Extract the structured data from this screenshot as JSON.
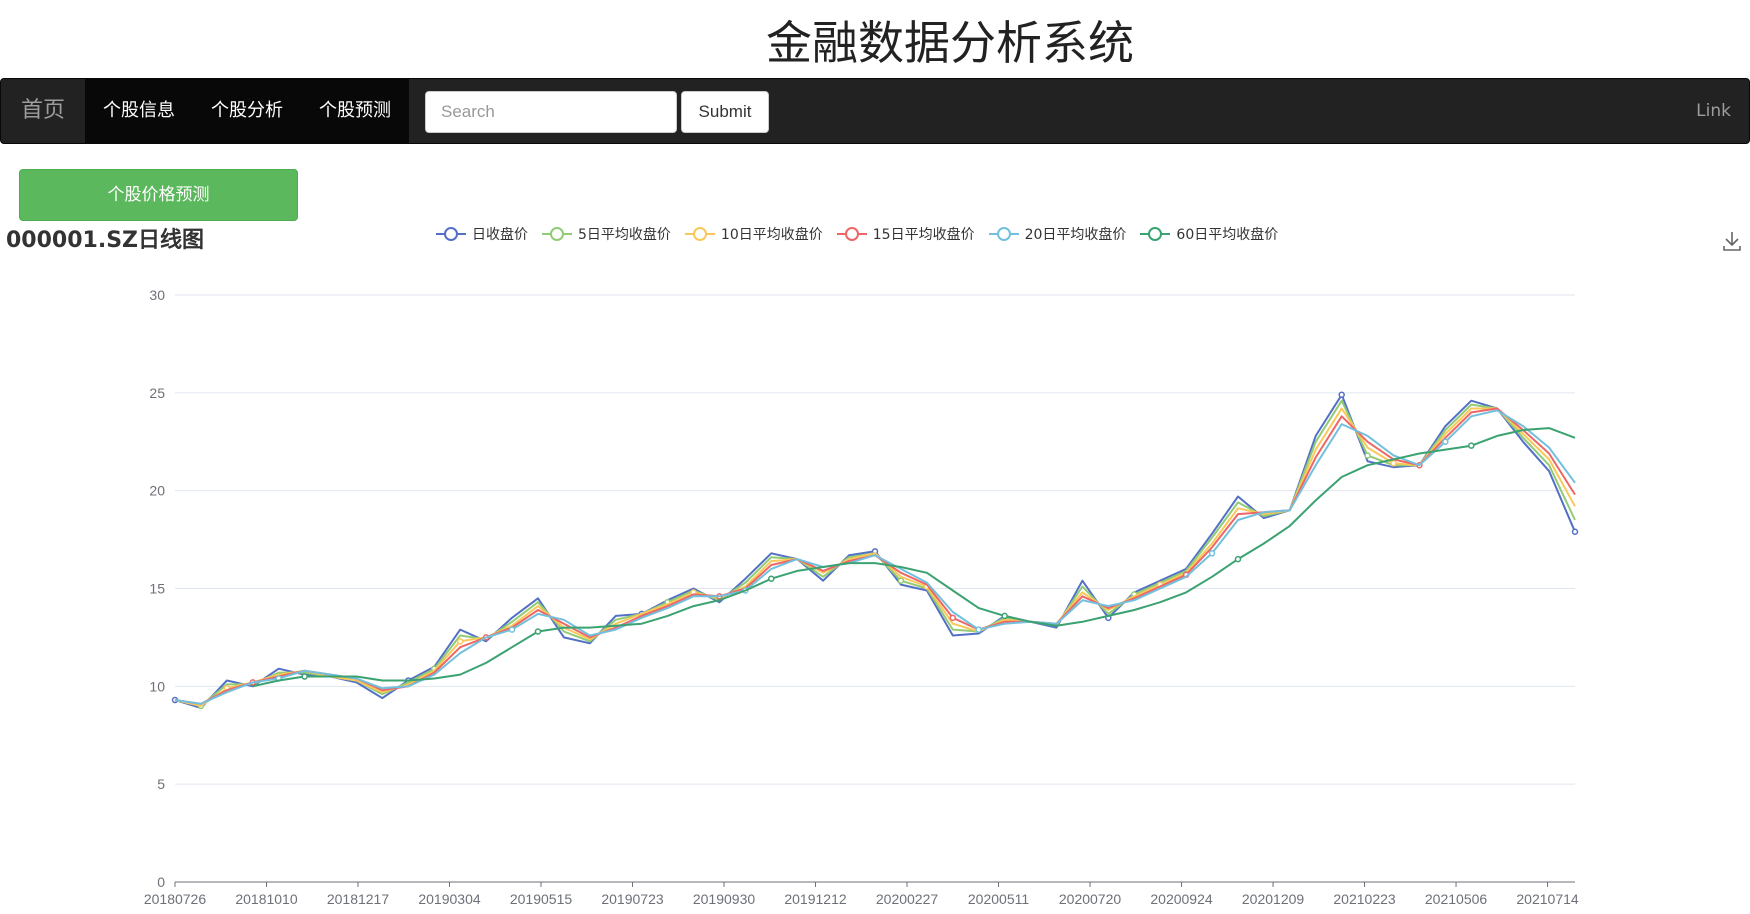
{
  "header": {
    "title": "金融数据分析系统"
  },
  "navbar": {
    "brand": "首页",
    "items": [
      "个股信息",
      "个股分析",
      "个股预测"
    ],
    "search": {
      "placeholder": "Search",
      "value": ""
    },
    "submit_label": "Submit",
    "link_label": "Link",
    "bg_color": "#222222"
  },
  "actions": {
    "predict_label": "个股价格预测",
    "predict_color": "#5cb85c"
  },
  "toolbox": {
    "download_icon": "download-icon"
  },
  "chart_data": {
    "type": "line",
    "title": "000001.SZ日线图",
    "ylim": [
      0,
      30
    ],
    "yticks": [
      0,
      5,
      10,
      15,
      20,
      25,
      30
    ],
    "xticks": [
      "20180726",
      "20181010",
      "20181217",
      "20190304",
      "20190515",
      "20190723",
      "20190930",
      "20191212",
      "20200227",
      "20200511",
      "20200720",
      "20200924",
      "20201209",
      "20210223",
      "20210506",
      "20210714"
    ],
    "legend_position": "top",
    "grid": true,
    "series": [
      {
        "name": "日收盘价",
        "color": "#5470c6",
        "values": [
          9.3,
          8.9,
          10.3,
          10.0,
          10.9,
          10.6,
          10.5,
          10.2,
          9.4,
          10.3,
          11.0,
          12.9,
          12.3,
          13.5,
          14.5,
          12.5,
          12.2,
          13.6,
          13.7,
          14.4,
          15.0,
          14.3,
          15.5,
          16.8,
          16.5,
          15.4,
          16.7,
          16.9,
          15.2,
          14.9,
          12.6,
          12.7,
          13.6,
          13.3,
          13.0,
          15.4,
          13.5,
          14.8,
          15.4,
          16.0,
          17.8,
          19.7,
          18.6,
          19.0,
          22.8,
          24.9,
          21.5,
          21.2,
          21.3,
          23.3,
          24.6,
          24.2,
          22.5,
          21.0,
          17.9
        ]
      },
      {
        "name": "5日平均收盘价",
        "color": "#91cc75",
        "values": [
          9.3,
          9.0,
          10.1,
          10.1,
          10.7,
          10.7,
          10.5,
          10.3,
          9.6,
          10.2,
          10.9,
          12.6,
          12.4,
          13.3,
          14.3,
          12.8,
          12.3,
          13.4,
          13.7,
          14.3,
          14.9,
          14.4,
          15.3,
          16.6,
          16.5,
          15.6,
          16.6,
          16.8,
          15.4,
          15.0,
          12.9,
          12.8,
          13.5,
          13.3,
          13.1,
          15.1,
          13.7,
          14.7,
          15.3,
          15.9,
          17.6,
          19.4,
          18.7,
          19.0,
          22.5,
          24.6,
          21.8,
          21.3,
          21.3,
          23.1,
          24.4,
          24.2,
          22.7,
          21.3,
          18.5
        ]
      },
      {
        "name": "10日平均收盘价",
        "color": "#fac858",
        "values": [
          9.3,
          9.0,
          9.9,
          10.2,
          10.6,
          10.8,
          10.5,
          10.3,
          9.7,
          10.1,
          10.8,
          12.3,
          12.5,
          13.1,
          14.1,
          13.0,
          12.4,
          13.2,
          13.7,
          14.2,
          14.8,
          14.5,
          15.1,
          16.4,
          16.5,
          15.8,
          16.5,
          16.8,
          15.6,
          15.1,
          13.2,
          12.8,
          13.4,
          13.3,
          13.2,
          14.8,
          13.9,
          14.6,
          15.2,
          15.8,
          17.3,
          19.1,
          18.8,
          19.0,
          22.1,
          24.2,
          22.2,
          21.4,
          21.3,
          22.9,
          24.2,
          24.2,
          22.9,
          21.6,
          19.2
        ]
      },
      {
        "name": "15日平均收盘价",
        "color": "#ee6666",
        "values": [
          9.3,
          9.1,
          9.8,
          10.2,
          10.5,
          10.8,
          10.6,
          10.4,
          9.8,
          10.0,
          10.7,
          12.0,
          12.5,
          13.0,
          13.9,
          13.2,
          12.5,
          13.0,
          13.6,
          14.1,
          14.7,
          14.6,
          15.0,
          16.2,
          16.5,
          15.9,
          16.4,
          16.7,
          15.8,
          15.2,
          13.5,
          12.9,
          13.3,
          13.3,
          13.2,
          14.6,
          14.0,
          14.5,
          15.1,
          15.7,
          17.1,
          18.8,
          18.9,
          19.0,
          21.7,
          23.8,
          22.5,
          21.6,
          21.3,
          22.7,
          24.0,
          24.2,
          23.1,
          21.9,
          19.8
        ]
      },
      {
        "name": "20日平均收盘价",
        "color": "#73c0de",
        "values": [
          9.3,
          9.1,
          9.7,
          10.2,
          10.4,
          10.8,
          10.6,
          10.4,
          9.9,
          10.0,
          10.6,
          11.7,
          12.5,
          12.9,
          13.7,
          13.4,
          12.6,
          12.9,
          13.5,
          14.0,
          14.6,
          14.6,
          14.9,
          16.0,
          16.5,
          16.1,
          16.3,
          16.7,
          16.0,
          15.3,
          13.8,
          12.9,
          13.2,
          13.3,
          13.2,
          14.4,
          14.1,
          14.4,
          15.0,
          15.6,
          16.8,
          18.5,
          18.9,
          19.0,
          21.3,
          23.4,
          22.8,
          21.8,
          21.3,
          22.5,
          23.8,
          24.1,
          23.3,
          22.2,
          20.4
        ]
      },
      {
        "name": "60日平均收盘价",
        "color": "#3ba272",
        "values": [
          null,
          null,
          null,
          10.0,
          10.3,
          10.5,
          10.5,
          10.5,
          10.3,
          10.3,
          10.4,
          10.6,
          11.2,
          12.0,
          12.8,
          13.0,
          13.0,
          13.1,
          13.2,
          13.6,
          14.1,
          14.4,
          14.9,
          15.5,
          15.9,
          16.1,
          16.3,
          16.3,
          16.1,
          15.8,
          14.9,
          14.0,
          13.6,
          13.3,
          13.1,
          13.3,
          13.6,
          13.9,
          14.3,
          14.8,
          15.6,
          16.5,
          17.3,
          18.2,
          19.5,
          20.7,
          21.3,
          21.6,
          21.9,
          22.1,
          22.3,
          22.8,
          23.1,
          23.2,
          22.7
        ]
      }
    ]
  }
}
